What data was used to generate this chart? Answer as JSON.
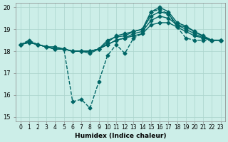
{
  "xlabel": "Humidex (Indice chaleur)",
  "ylabel": "",
  "bg_color": "#cceee8",
  "grid_color": "#aad4cc",
  "line_color": "#006666",
  "xlim": [
    -0.5,
    23.5
  ],
  "ylim": [
    14.8,
    20.2
  ],
  "yticks": [
    15,
    16,
    17,
    18,
    19,
    20
  ],
  "xtick_labels": [
    "0",
    "1",
    "2",
    "3",
    "4",
    "5",
    "6",
    "7",
    "8",
    "9",
    "10",
    "11",
    "12",
    "13",
    "14",
    "15",
    "16",
    "17",
    "18",
    "19",
    "20",
    "21",
    "22",
    "23"
  ],
  "lines": [
    {
      "x": [
        0,
        1,
        2,
        3,
        4,
        5,
        6,
        7,
        8,
        9,
        10,
        11,
        12,
        13,
        14,
        15,
        16,
        17,
        18,
        19,
        20,
        21,
        22,
        23
      ],
      "y": [
        18.3,
        18.5,
        18.3,
        18.2,
        18.1,
        18.1,
        15.7,
        15.8,
        15.4,
        16.6,
        17.8,
        18.3,
        17.9,
        18.6,
        18.8,
        19.8,
        19.9,
        19.7,
        19.1,
        18.6,
        18.5,
        18.5,
        18.5,
        18.5
      ],
      "marker": "D",
      "markersize": 2.5,
      "linewidth": 1.0,
      "linestyle": "--"
    },
    {
      "x": [
        0,
        1,
        2,
        3,
        4,
        5,
        6,
        7,
        8,
        9,
        10,
        11,
        12,
        13,
        14,
        15,
        16,
        17,
        18,
        19,
        20,
        21,
        22,
        23
      ],
      "y": [
        18.3,
        18.4,
        18.3,
        18.2,
        18.1,
        18.1,
        18.0,
        18.0,
        18.0,
        18.1,
        18.3,
        18.5,
        18.6,
        18.7,
        18.8,
        19.2,
        19.3,
        19.3,
        19.1,
        18.9,
        18.7,
        18.6,
        18.5,
        18.5
      ],
      "marker": "D",
      "markersize": 2.5,
      "linewidth": 1.0,
      "linestyle": "-"
    },
    {
      "x": [
        0,
        1,
        2,
        3,
        4,
        5,
        6,
        7,
        8,
        9,
        10,
        11,
        12,
        13,
        14,
        15,
        16,
        17,
        18,
        19,
        20,
        21,
        22,
        23
      ],
      "y": [
        18.3,
        18.4,
        18.3,
        18.2,
        18.1,
        18.1,
        18.0,
        18.0,
        18.0,
        18.1,
        18.3,
        18.5,
        18.6,
        18.8,
        18.9,
        19.4,
        19.6,
        19.5,
        19.2,
        19.0,
        18.8,
        18.6,
        18.5,
        18.5
      ],
      "marker": "D",
      "markersize": 2.5,
      "linewidth": 1.0,
      "linestyle": "-"
    },
    {
      "x": [
        0,
        1,
        2,
        3,
        4,
        5,
        6,
        7,
        8,
        9,
        10,
        11,
        12,
        13,
        14,
        15,
        16,
        17,
        18,
        19,
        20,
        21,
        22,
        23
      ],
      "y": [
        18.3,
        18.4,
        18.3,
        18.2,
        18.2,
        18.1,
        18.0,
        18.0,
        18.0,
        18.1,
        18.4,
        18.7,
        18.8,
        18.9,
        19.0,
        19.6,
        19.8,
        19.7,
        19.2,
        19.1,
        18.9,
        18.7,
        18.5,
        18.5
      ],
      "marker": "D",
      "markersize": 2.5,
      "linewidth": 1.0,
      "linestyle": "-"
    },
    {
      "x": [
        0,
        1,
        2,
        3,
        4,
        5,
        6,
        7,
        8,
        9,
        10,
        11,
        12,
        13,
        14,
        15,
        16,
        17,
        18,
        19,
        20,
        21,
        22,
        23
      ],
      "y": [
        18.3,
        18.45,
        18.3,
        18.2,
        18.1,
        18.1,
        18.0,
        18.0,
        17.9,
        18.1,
        18.5,
        18.65,
        18.7,
        18.9,
        19.0,
        19.8,
        20.0,
        19.8,
        19.3,
        19.15,
        18.9,
        18.65,
        18.5,
        18.5
      ],
      "marker": "D",
      "markersize": 2.5,
      "linewidth": 1.0,
      "linestyle": "-"
    }
  ]
}
